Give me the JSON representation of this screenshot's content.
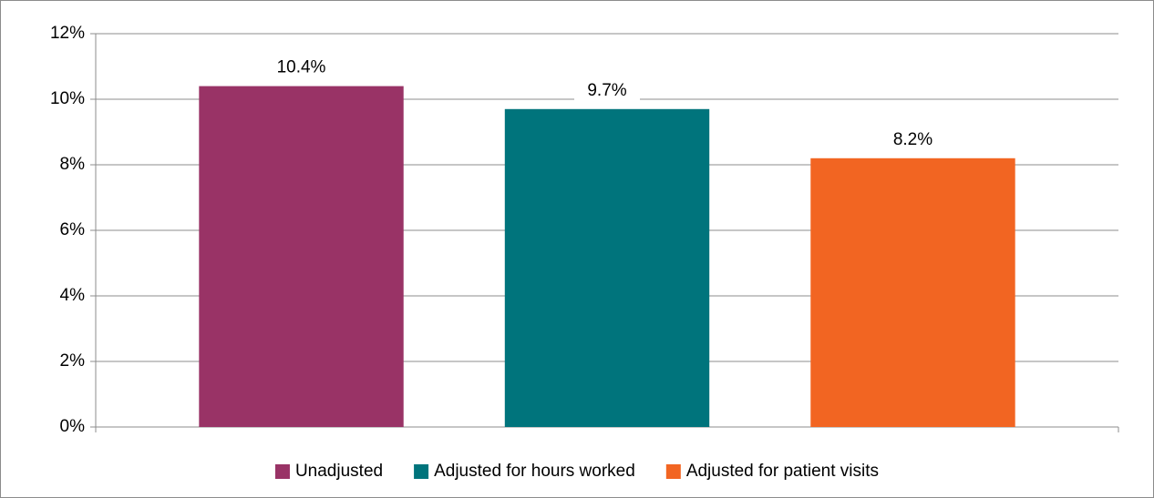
{
  "chart_data": {
    "type": "bar",
    "categories": [
      null
    ],
    "series": [
      {
        "name": "Unadjusted",
        "color": "#993366",
        "values": [
          10.4
        ],
        "value_labels": [
          "10.4%"
        ]
      },
      {
        "name": "Adjusted for hours worked",
        "color": "#00747c",
        "values": [
          9.7
        ],
        "value_labels": [
          "9.7%"
        ]
      },
      {
        "name": "Adjusted for patient visits",
        "color": "#f26522",
        "values": [
          8.2
        ],
        "value_labels": [
          "8.2%"
        ]
      }
    ],
    "ylim": [
      0,
      12
    ],
    "yticks": [
      {
        "value": 0,
        "label": "0%"
      },
      {
        "value": 2,
        "label": "2%"
      },
      {
        "value": 4,
        "label": "4%"
      },
      {
        "value": 6,
        "label": "6%"
      },
      {
        "value": 8,
        "label": "8%"
      },
      {
        "value": 10,
        "label": "10%"
      },
      {
        "value": 12,
        "label": "12%"
      }
    ],
    "grid": true,
    "legend": "bottom"
  }
}
